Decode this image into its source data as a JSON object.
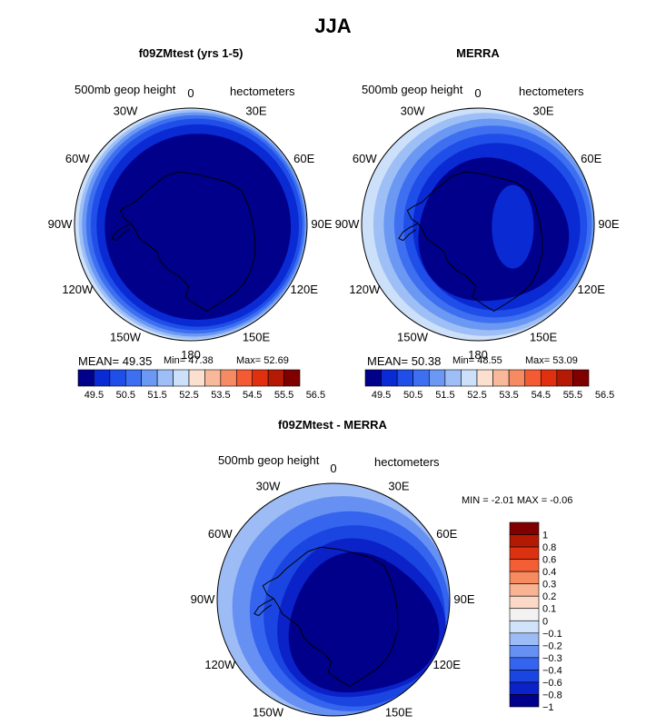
{
  "figure": {
    "season_title": "JJA",
    "field_label": "500mb geop height",
    "units_label": "hectometers",
    "lon_labels": [
      "0",
      "30E",
      "60E",
      "90E",
      "120E",
      "150E",
      "180",
      "150W",
      "120W",
      "90W",
      "60W",
      "30W"
    ],
    "colors": {
      "abs": [
        "#00008b",
        "#0a2ad4",
        "#1f4ee8",
        "#3d6ff0",
        "#6a98f3",
        "#9ebff6",
        "#cde0fa",
        "#fbe0d0",
        "#f8b89a",
        "#f68a62",
        "#f45a33",
        "#e03010",
        "#b51a04",
        "#800000"
      ],
      "diff": [
        "#00008b",
        "#0a22c8",
        "#1a45e0",
        "#3564ee",
        "#6690f2",
        "#9dbcf5",
        "#d1e3fb",
        "#f2f2f2",
        "#fbd9c6",
        "#f8b393",
        "#f68b60",
        "#f45e35",
        "#dd3211",
        "#b31a04",
        "#800000"
      ]
    }
  },
  "panels": [
    {
      "id": "model",
      "title": "f09ZMtest (yrs 1-5)",
      "stats": {
        "mean_label": "MEAN=",
        "mean": "49.35",
        "min_label": "Min=",
        "min": "47.38",
        "max_label": "Max=",
        "max": "52.69"
      },
      "colorbar_ticks": [
        "49.5",
        "50.5",
        "51.5",
        "52.5",
        "53.5",
        "54.5",
        "55.5",
        "56.5"
      ]
    },
    {
      "id": "obs",
      "title": "MERRA",
      "stats": {
        "mean_label": "MEAN=",
        "mean": "50.38",
        "min_label": "Min=",
        "min": "48.55",
        "max_label": "Max=",
        "max": "53.09"
      },
      "colorbar_ticks": [
        "49.5",
        "50.5",
        "51.5",
        "52.5",
        "53.5",
        "54.5",
        "55.5",
        "56.5"
      ]
    },
    {
      "id": "diff",
      "title": "f09ZMtest - MERRA",
      "stats": {
        "min_label": "MIN =",
        "min": "-2.01",
        "max_label": "MAX =",
        "max": "-0.06"
      },
      "colorbar_ticks": [
        "1",
        "0.8",
        "0.6",
        "0.4",
        "0.3",
        "0.2",
        "0.1",
        "0",
        "−0.1",
        "−0.2",
        "−0.3",
        "−0.4",
        "−0.6",
        "−0.8",
        "−1"
      ]
    }
  ],
  "chart_data": [
    {
      "type": "heatmap",
      "projection": "south-polar-stereographic",
      "title": "f09ZMtest (yrs 1-5)",
      "variable": "500mb geop height",
      "units": "hectometers",
      "season": "JJA",
      "contour_levels": [
        49.5,
        50,
        50.5,
        51,
        51.5,
        52,
        52.5,
        53,
        53.5,
        54,
        54.5,
        55,
        55.5,
        56,
        56.5
      ],
      "mean": 49.35,
      "min": 47.38,
      "max": 52.69
    },
    {
      "type": "heatmap",
      "projection": "south-polar-stereographic",
      "title": "MERRA",
      "variable": "500mb geop height",
      "units": "hectometers",
      "season": "JJA",
      "contour_levels": [
        49.5,
        50,
        50.5,
        51,
        51.5,
        52,
        52.5,
        53,
        53.5,
        54,
        54.5,
        55,
        55.5,
        56,
        56.5
      ],
      "mean": 50.38,
      "min": 48.55,
      "max": 53.09
    },
    {
      "type": "heatmap",
      "projection": "south-polar-stereographic",
      "title": "f09ZMtest - MERRA",
      "variable": "500mb geop height",
      "units": "hectometers",
      "season": "JJA",
      "contour_levels": [
        -1,
        -0.8,
        -0.6,
        -0.4,
        -0.3,
        -0.2,
        -0.1,
        0,
        0.1,
        0.2,
        0.3,
        0.4,
        0.6,
        0.8,
        1
      ],
      "min": -2.01,
      "max": -0.06
    }
  ]
}
